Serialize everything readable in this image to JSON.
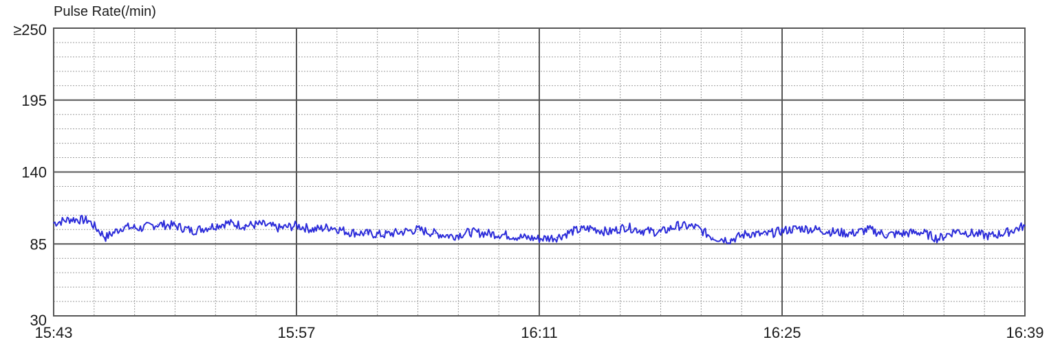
{
  "chart_data": {
    "type": "line",
    "title": "Pulse Rate(/min)",
    "xlabel": "",
    "ylabel": "",
    "x_tick_labels": [
      "15:43",
      "15:57",
      "16:11",
      "16:25",
      "16:39"
    ],
    "y_tick_labels": [
      "≥250",
      "195",
      "140",
      "85",
      "30"
    ],
    "y_tick_values": [
      250,
      195,
      140,
      85,
      30
    ],
    "ylim": [
      30,
      250
    ],
    "x_range": [
      "15:43",
      "16:39"
    ],
    "grid": true,
    "line_color": "#2b2bd9",
    "series": [
      {
        "x": [
          "15:43",
          "15:44",
          "15:45",
          "15:46",
          "15:47",
          "15:48",
          "15:49",
          "15:50",
          "15:51",
          "15:52",
          "15:53",
          "15:54",
          "15:55",
          "15:56",
          "15:57",
          "15:58",
          "15:59",
          "16:00",
          "16:01",
          "16:02",
          "16:03",
          "16:04",
          "16:05",
          "16:06",
          "16:07",
          "16:08",
          "16:09",
          "16:10",
          "16:11",
          "16:12",
          "16:13",
          "16:14",
          "16:15",
          "16:16",
          "16:17",
          "16:18",
          "16:19",
          "16:20",
          "16:21",
          "16:22",
          "16:23",
          "16:24",
          "16:25",
          "16:26",
          "16:27",
          "16:28",
          "16:29",
          "16:30",
          "16:31",
          "16:32",
          "16:33",
          "16:34",
          "16:35",
          "16:36",
          "16:37",
          "16:38",
          "16:39"
        ],
        "values": [
          101,
          104,
          103,
          90,
          98,
          97,
          100,
          99,
          95,
          98,
          101,
          99,
          100,
          97,
          99,
          96,
          98,
          94,
          93,
          92,
          94,
          96,
          93,
          91,
          94,
          93,
          92,
          90,
          89,
          90,
          95,
          97,
          94,
          98,
          95,
          94,
          99,
          98,
          90,
          88,
          93,
          92,
          95,
          97,
          96,
          94,
          93,
          96,
          92,
          93,
          94,
          89,
          95,
          93,
          91,
          94,
          99
        ]
      }
    ]
  }
}
